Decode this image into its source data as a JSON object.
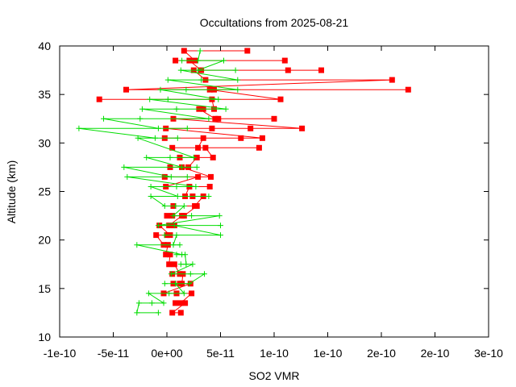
{
  "chart_data": {
    "type": "line",
    "title": "Occultations from 2025-08-21",
    "xlabel": "SO2 VMR",
    "ylabel": "Altitude (km)",
    "xlim": [
      -1e-10,
      3e-10
    ],
    "ylim": [
      10,
      40
    ],
    "x_ticks": [
      -1e-10,
      -5e-11,
      0,
      5e-11,
      1e-10,
      1.5e-10,
      2e-10,
      2.5e-10,
      3e-10
    ],
    "x_tick_labels": [
      "-1e-10",
      "-5e-11",
      "0e+00",
      "5e-11",
      "1e-10",
      "1e-10",
      "2e-10",
      "2e-10",
      "3e-10"
    ],
    "y_ticks": [
      10,
      15,
      20,
      25,
      30,
      35,
      40
    ],
    "y_tick_labels": [
      "10",
      "15",
      "20",
      "25",
      "30",
      "35",
      "40"
    ],
    "grid": false,
    "legend": "none",
    "series": [
      {
        "color": "#ff0000",
        "marker": "square",
        "points": [
          [
            1.3e-11,
            12.5
          ],
          [
            5e-12,
            12.5
          ],
          [
            1.7e-11,
            13.5
          ],
          [
            8e-12,
            13.5
          ],
          [
            1.3e-11,
            13.5
          ],
          [
            2.3e-11,
            14.5
          ],
          [
            9e-12,
            14.5
          ],
          [
            -3e-12,
            14.5
          ],
          [
            2.2e-11,
            15.5
          ],
          [
            1.2e-11,
            15.5
          ],
          [
            6e-12,
            15.5
          ],
          [
            1.4e-11,
            15.5
          ],
          [
            1.5e-11,
            16.5
          ],
          [
            5e-12,
            16.5
          ],
          [
            1.2e-11,
            16.5
          ],
          [
            7e-12,
            17.5
          ],
          [
            2e-12,
            17.5
          ],
          [
            3e-12,
            18.5
          ],
          [
            -1e-12,
            18.5
          ],
          [
            1e-12,
            19.5
          ],
          [
            -3e-12,
            19.5
          ],
          [
            -1e-11,
            20.5
          ],
          [
            0.0,
            20.5
          ],
          [
            3e-12,
            20.5
          ],
          [
            -7e-12,
            21.5
          ],
          [
            7e-12,
            21.5
          ],
          [
            2e-12,
            21.5
          ],
          [
            1.4e-11,
            22.5
          ],
          [
            5e-12,
            22.5
          ],
          [
            0.0,
            22.5
          ],
          [
            1.6e-11,
            22.5
          ],
          [
            2.8e-11,
            23.5
          ],
          [
            6e-12,
            23.5
          ],
          [
            2.6e-11,
            23.5
          ],
          [
            3.4e-11,
            24.5
          ],
          [
            2.4e-11,
            24.5
          ],
          [
            1.7e-11,
            24.5
          ],
          [
            2.1e-11,
            25.5
          ],
          [
            4e-11,
            25.5
          ],
          [
            -1e-12,
            25.5
          ],
          [
            2.9e-11,
            26.5
          ],
          [
            -2e-12,
            26.5
          ],
          [
            4.1e-11,
            26.5
          ],
          [
            1.4e-11,
            27.5
          ],
          [
            3e-12,
            27.5
          ],
          [
            2e-11,
            27.5
          ],
          [
            2.8e-11,
            28.5
          ],
          [
            1.2e-11,
            28.5
          ],
          [
            4.3e-11,
            28.5
          ],
          [
            3.6e-11,
            29.5
          ],
          [
            8.6e-11,
            29.5
          ],
          [
            5e-12,
            29.5
          ],
          [
            2.9e-11,
            29.5
          ],
          [
            3.4e-11,
            30.5
          ],
          [
            -2e-12,
            30.5
          ],
          [
            6.9e-11,
            30.5
          ],
          [
            8.9e-11,
            30.5
          ],
          [
            -1e-12,
            31.5
          ],
          [
            4.2e-11,
            31.5
          ],
          [
            7.8e-11,
            31.5
          ],
          [
            1.26e-10,
            31.5
          ],
          [
            6e-12,
            32.5
          ],
          [
            4.8e-11,
            32.5
          ],
          [
            1e-10,
            32.5
          ],
          [
            4.5e-11,
            32.5
          ],
          [
            3e-11,
            33.5
          ],
          [
            3.4e-11,
            33.5
          ],
          [
            4.4e-11,
            33.5
          ],
          [
            4.2e-11,
            34.5
          ],
          [
            -6.3e-11,
            34.5
          ],
          [
            1.06e-10,
            34.5
          ],
          [
            4e-11,
            35.5
          ],
          [
            2.25e-10,
            35.5
          ],
          [
            4.4e-11,
            35.5
          ],
          [
            -3.8e-11,
            35.5
          ],
          [
            2.1e-10,
            36.5
          ],
          [
            3.6e-11,
            36.5
          ],
          [
            2.5e-11,
            37.5
          ],
          [
            1.13e-10,
            37.5
          ],
          [
            1.44e-10,
            37.5
          ],
          [
            3.2e-11,
            37.5
          ],
          [
            2.1e-11,
            38.5
          ],
          [
            1.1e-10,
            38.5
          ],
          [
            8e-12,
            38.5
          ],
          [
            2.6e-11,
            38.5
          ],
          [
            1.6e-11,
            39.5
          ],
          [
            7.5e-11,
            39.5
          ]
        ]
      },
      {
        "color": "#00dd00",
        "marker": "plus",
        "points": [
          [
            -8e-12,
            12.5
          ],
          [
            -2.8e-11,
            12.5
          ],
          [
            -2.6e-11,
            13.5
          ],
          [
            -1.4e-11,
            13.5
          ],
          [
            -3e-12,
            13.5
          ],
          [
            -1.7e-11,
            14.5
          ],
          [
            2e-12,
            14.5
          ],
          [
            1.6e-11,
            14.5
          ],
          [
            8e-12,
            15.5
          ],
          [
            -2e-12,
            15.5
          ],
          [
            2.1e-11,
            15.5
          ],
          [
            3.5e-11,
            16.5
          ],
          [
            2.2e-11,
            16.5
          ],
          [
            4e-12,
            16.5
          ],
          [
            2.4e-11,
            17.5
          ],
          [
            1.3e-11,
            17.5
          ],
          [
            1.8e-11,
            17.5
          ],
          [
            1.7e-11,
            18.5
          ],
          [
            9e-12,
            18.5
          ],
          [
            1.4e-11,
            18.5
          ],
          [
            -2.8e-11,
            19.5
          ],
          [
            1.2e-11,
            19.5
          ],
          [
            6e-12,
            19.5
          ],
          [
            9e-12,
            20.5
          ],
          [
            -2e-12,
            20.5
          ],
          [
            5e-11,
            20.5
          ],
          [
            7e-12,
            21.5
          ],
          [
            5e-11,
            21.5
          ],
          [
            -8e-12,
            21.5
          ],
          [
            4.9e-11,
            22.5
          ],
          [
            2.3e-11,
            22.5
          ],
          [
            6e-12,
            22.5
          ],
          [
            1.6e-11,
            23.5
          ],
          [
            8e-12,
            23.5
          ],
          [
            -2e-12,
            23.5
          ],
          [
            -1.5e-11,
            24.5
          ],
          [
            3.9e-11,
            24.5
          ],
          [
            1e-11,
            24.5
          ],
          [
            -1.5e-11,
            25.5
          ],
          [
            9e-12,
            25.5
          ],
          [
            2.7e-11,
            25.5
          ],
          [
            -3.7e-11,
            26.5
          ],
          [
            1.9e-11,
            26.5
          ],
          [
            4e-12,
            26.5
          ],
          [
            -4e-11,
            27.5
          ],
          [
            2.8e-11,
            27.5
          ],
          [
            1.4e-11,
            27.5
          ],
          [
            -1.9e-11,
            28.5
          ],
          [
            3e-12,
            28.5
          ],
          [
            2.5e-11,
            28.5
          ],
          [
            -2.7e-11,
            30.5
          ],
          [
            1e-11,
            30.5
          ],
          [
            -1.1e-11,
            30.5
          ],
          [
            -8.2e-11,
            31.5
          ],
          [
            1.9e-11,
            31.5
          ],
          [
            -8e-12,
            31.5
          ],
          [
            -5.9e-11,
            32.5
          ],
          [
            -2.5e-11,
            32.5
          ],
          [
            3.9e-11,
            32.5
          ],
          [
            -2.3e-11,
            33.5
          ],
          [
            9e-12,
            33.5
          ],
          [
            5.5e-11,
            33.5
          ],
          [
            -1.6e-11,
            34.5
          ],
          [
            1e-12,
            34.5
          ],
          [
            4.8e-11,
            34.5
          ],
          [
            -6e-12,
            35.5
          ],
          [
            1.8e-11,
            35.5
          ],
          [
            6.6e-11,
            35.5
          ],
          [
            1e-12,
            36.5
          ],
          [
            3.2e-11,
            36.5
          ],
          [
            6.6e-11,
            36.5
          ],
          [
            1.3e-11,
            37.5
          ],
          [
            6.4e-11,
            37.5
          ],
          [
            2.9e-11,
            37.5
          ],
          [
            5.3e-11,
            38.5
          ],
          [
            1.4e-11,
            38.5
          ],
          [
            2.9e-11,
            38.5
          ],
          [
            3.1e-11,
            39.5
          ]
        ]
      }
    ]
  }
}
